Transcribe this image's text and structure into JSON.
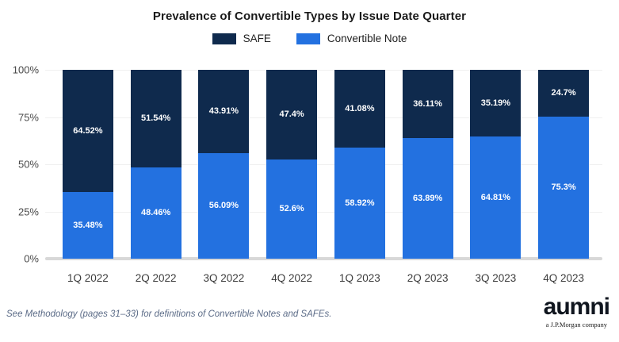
{
  "title": "Prevalence of Convertible Types by Issue Date Quarter",
  "footnote": "See Methodology (pages 31–33) for definitions of Convertible Notes and SAFEs.",
  "logo": {
    "brand": "aumni",
    "tagline": "a J.P.Morgan company"
  },
  "colors": {
    "safe": "#0f2a4d",
    "convertible_note": "#2371e0",
    "grid": "#f0f0f0",
    "baseline": "#d8d8d8"
  },
  "chart_data": {
    "type": "bar",
    "stacked": true,
    "unit": "percent",
    "title": "Prevalence of Convertible Types by Issue Date Quarter",
    "categories": [
      "1Q 2022",
      "2Q 2022",
      "3Q 2022",
      "4Q 2022",
      "1Q 2023",
      "2Q 2023",
      "3Q 2023",
      "4Q 2023"
    ],
    "series": [
      {
        "name": "SAFE",
        "color": "#0f2a4d",
        "values": [
          64.52,
          51.54,
          43.91,
          47.4,
          41.08,
          36.11,
          35.19,
          24.7
        ],
        "labels": [
          "64.52%",
          "51.54%",
          "43.91%",
          "47.4%",
          "41.08%",
          "36.11%",
          "35.19%",
          "24.7%"
        ]
      },
      {
        "name": "Convertible Note",
        "color": "#2371e0",
        "values": [
          35.48,
          48.46,
          56.09,
          52.6,
          58.92,
          63.89,
          64.81,
          75.3
        ],
        "labels": [
          "35.48%",
          "48.46%",
          "56.09%",
          "52.6%",
          "58.92%",
          "63.89%",
          "64.81%",
          "75.3%"
        ]
      }
    ],
    "y_ticks": [
      {
        "label": "100%",
        "value": 100
      },
      {
        "label": "75%",
        "value": 75
      },
      {
        "label": "50%",
        "value": 50
      },
      {
        "label": "25%",
        "value": 25
      },
      {
        "label": "0%",
        "value": 0
      }
    ],
    "ylim": [
      0,
      100
    ],
    "grid": true,
    "legend_position": "top"
  }
}
